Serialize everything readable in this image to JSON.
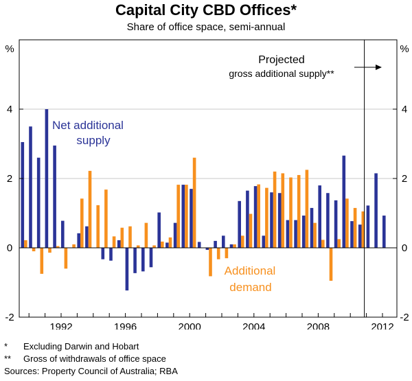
{
  "chart_data": {
    "type": "bar",
    "title": "Capital City CBD Offices*",
    "subtitle": "Share of office space, semi-annual",
    "ylabel_left": "%",
    "ylabel_right": "%",
    "ylim": [
      -2,
      6
    ],
    "yticks": [
      "-2",
      "0",
      "2",
      "4"
    ],
    "x_tick_labels": [
      "1992",
      "1996",
      "2000",
      "2004",
      "2008",
      "2012"
    ],
    "periods": [
      "1989-H2",
      "1990-H1",
      "1990-H2",
      "1991-H1",
      "1991-H2",
      "1992-H1",
      "1992-H2",
      "1993-H1",
      "1993-H2",
      "1994-H1",
      "1994-H2",
      "1995-H1",
      "1995-H2",
      "1996-H1",
      "1996-H2",
      "1997-H1",
      "1997-H2",
      "1998-H1",
      "1998-H2",
      "1999-H1",
      "1999-H2",
      "2000-H1",
      "2000-H2",
      "2001-H1",
      "2001-H2",
      "2002-H1",
      "2002-H2",
      "2003-H1",
      "2003-H2",
      "2004-H1",
      "2004-H2",
      "2005-H1",
      "2005-H2",
      "2006-H1",
      "2006-H2",
      "2007-H1",
      "2007-H2",
      "2008-H1",
      "2008-H2",
      "2009-H1",
      "2009-H2",
      "2010-H1",
      "2010-H2"
    ],
    "series": [
      {
        "name": "Net additional supply",
        "color": "#2b3497",
        "values": [
          3.05,
          3.5,
          2.6,
          4.0,
          2.95,
          0.78,
          0.0,
          0.42,
          0.62,
          0.0,
          -0.33,
          -0.37,
          0.22,
          -1.23,
          -0.73,
          -0.68,
          -0.56,
          1.02,
          0.15,
          0.72,
          1.82,
          1.7,
          0.17,
          -0.06,
          0.2,
          0.35,
          0.1,
          1.35,
          1.65,
          1.78,
          0.35,
          1.6,
          1.58,
          0.8,
          0.8,
          0.93,
          1.15,
          1.8,
          1.58,
          1.37,
          2.66,
          0.77,
          0.67
        ]
      },
      {
        "name": "Additional demand",
        "color": "#f7901e",
        "values": [
          0.22,
          -0.1,
          -0.75,
          -0.14,
          0.05,
          -0.6,
          0.1,
          1.42,
          2.22,
          1.23,
          1.68,
          0.33,
          0.58,
          0.62,
          0.07,
          0.72,
          0.07,
          0.18,
          0.3,
          1.82,
          1.82,
          2.6,
          0.0,
          -0.82,
          -0.33,
          -0.3,
          0.1,
          0.35,
          0.98,
          1.83,
          1.73,
          2.2,
          2.15,
          2.03,
          2.1,
          2.25,
          0.72,
          0.23,
          -0.95,
          0.25,
          1.42,
          1.15,
          1.05
        ]
      }
    ],
    "projected": {
      "periods": [
        "2011-H1",
        "2011-H2",
        "2012-H1"
      ],
      "values": [
        1.22,
        2.15,
        0.93
      ],
      "color": "#2b3497",
      "label_line1": "Projected",
      "label_line2": "gross additional supply**"
    },
    "annotations": {
      "supply_line1": "Net additional",
      "supply_line2": "supply",
      "demand_line1": "Additional",
      "demand_line2": "demand"
    }
  },
  "footnotes": [
    {
      "marker": "*",
      "text": "Excluding Darwin and Hobart"
    },
    {
      "marker": "**",
      "text": "Gross of withdrawals of office space"
    }
  ],
  "sources": "Sources: Property Council of Australia; RBA"
}
